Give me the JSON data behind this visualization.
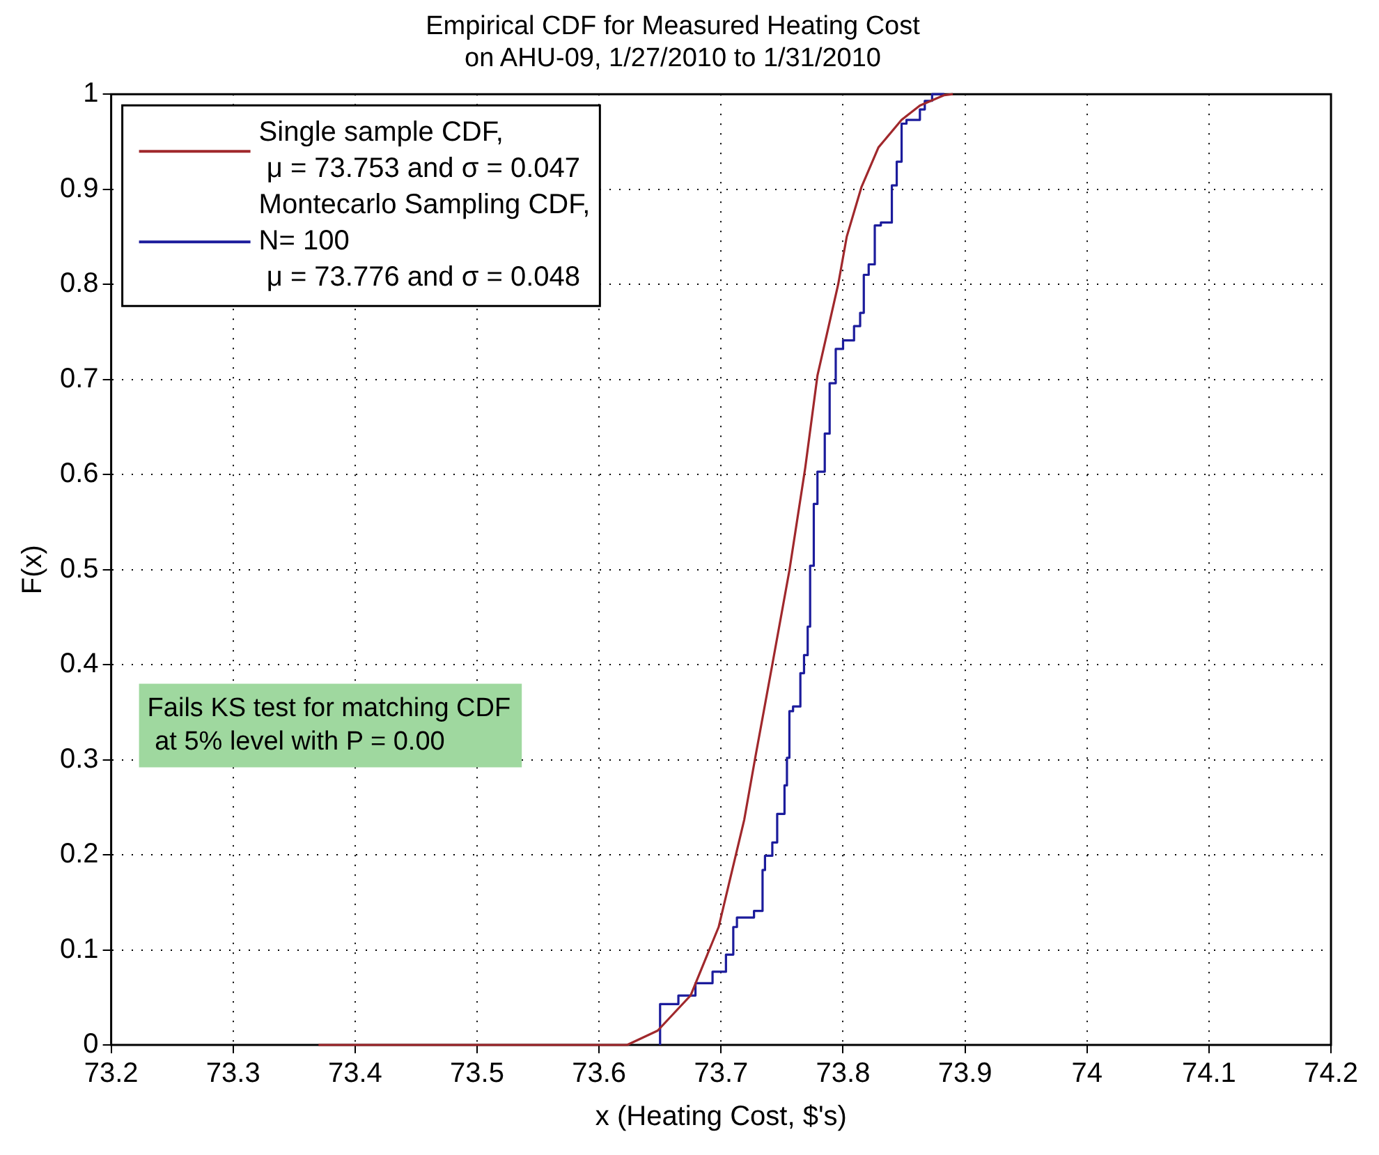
{
  "chart_data": {
    "type": "line",
    "title": "Empirical CDF for Measured Heating Cost\non AHU-09, 1/27/2010 to 1/31/2010",
    "xlabel": "x (Heating Cost, $'s)",
    "ylabel": "F(x)",
    "xlim": [
      73.2,
      74.2
    ],
    "xticks": [
      73.2,
      73.3,
      73.4,
      73.5,
      73.6,
      73.7,
      73.8,
      73.9,
      74,
      74.1,
      74.2
    ],
    "ylim": [
      0,
      1
    ],
    "yticks": [
      0,
      0.1,
      0.2,
      0.3,
      0.4,
      0.5,
      0.6,
      0.7,
      0.8,
      0.9,
      1
    ],
    "grid": true,
    "legend": "top left",
    "series": [
      {
        "name": "Single sample CDF,\n μ = 73.753 and σ = 0.047",
        "color": "#a0282c",
        "x": [
          73.37,
          73.623,
          73.648,
          73.675,
          73.698,
          73.719,
          73.728,
          73.742,
          73.756,
          73.769,
          73.779,
          73.796,
          73.803,
          73.815,
          73.829,
          73.848,
          73.863,
          73.883,
          73.89
        ],
        "values": [
          0,
          0,
          0.015,
          0.052,
          0.124,
          0.237,
          0.302,
          0.4,
          0.499,
          0.607,
          0.704,
          0.8,
          0.85,
          0.902,
          0.944,
          0.973,
          0.988,
          0.999,
          1
        ]
      },
      {
        "name": "Montecarlo Sampling CDF,\nN= 100\n μ = 73.776 and σ = 0.048",
        "type": "step",
        "color": "#1c1c9c",
        "x": [
          73.65,
          73.65,
          73.665,
          73.679,
          73.693,
          73.704,
          73.71,
          73.713,
          73.727,
          73.734,
          73.736,
          73.742,
          73.746,
          73.752,
          73.754,
          73.756,
          73.759,
          73.765,
          73.768,
          73.771,
          73.773,
          73.776,
          73.779,
          73.785,
          73.789,
          73.794,
          73.8,
          73.809,
          73.814,
          73.817,
          73.821,
          73.826,
          73.831,
          73.84,
          73.844,
          73.848,
          73.852,
          73.863,
          73.867,
          73.873,
          73.883
        ],
        "values": [
          0,
          0.023,
          0.043,
          0.052,
          0.065,
          0.077,
          0.095,
          0.124,
          0.134,
          0.141,
          0.184,
          0.199,
          0.213,
          0.243,
          0.273,
          0.302,
          0.351,
          0.356,
          0.391,
          0.41,
          0.44,
          0.504,
          0.569,
          0.603,
          0.643,
          0.696,
          0.732,
          0.741,
          0.756,
          0.77,
          0.81,
          0.821,
          0.862,
          0.865,
          0.904,
          0.929,
          0.969,
          0.973,
          0.984,
          0.993,
          1
        ]
      }
    ],
    "annotations": [
      "Fails KS test for matching CDF\n at 5% level with P = 0.00"
    ]
  }
}
